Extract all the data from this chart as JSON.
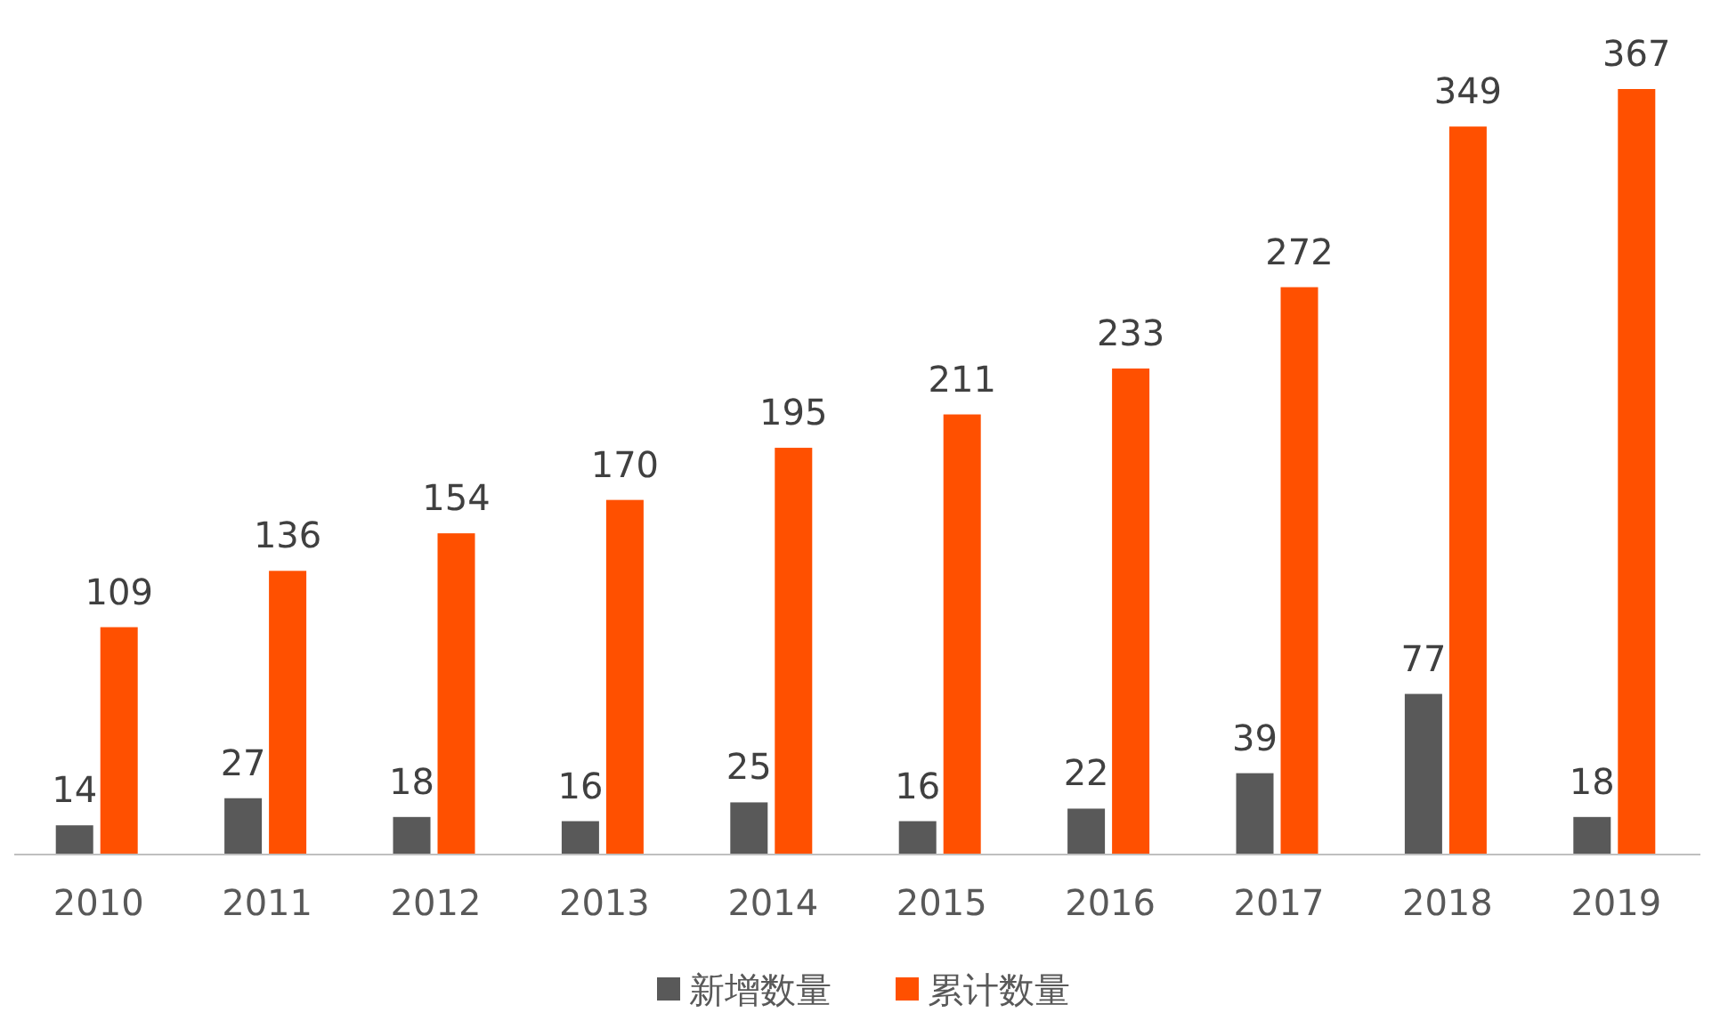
{
  "chart_data": {
    "type": "bar",
    "categories": [
      "2010",
      "2011",
      "2012",
      "2013",
      "2014",
      "2015",
      "2016",
      "2017",
      "2018",
      "2019"
    ],
    "series": [
      {
        "name": "新增数量",
        "color": "#595959",
        "values": [
          14,
          27,
          18,
          16,
          25,
          16,
          22,
          39,
          77,
          18
        ]
      },
      {
        "name": "累计数量",
        "color": "#ff5000",
        "values": [
          109,
          136,
          154,
          170,
          195,
          211,
          233,
          272,
          349,
          367
        ]
      }
    ],
    "data_labels": true,
    "legend": "bottom"
  }
}
